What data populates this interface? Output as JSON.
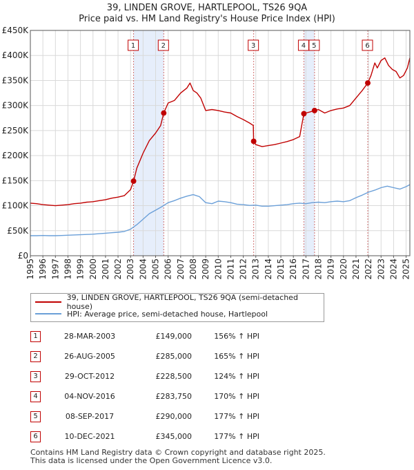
{
  "chart_data": {
    "type": "line",
    "title": "39, LINDEN GROVE, HARTLEPOOL, TS26 9QA",
    "subtitle": "Price paid vs. HM Land Registry's House Price Index (HPI)",
    "xlabel": "",
    "ylabel": "",
    "xlim": [
      1995,
      2025.3
    ],
    "ylim": [
      0,
      450000
    ],
    "ytick_values": [
      0,
      50000,
      100000,
      150000,
      200000,
      250000,
      300000,
      350000,
      400000,
      450000
    ],
    "ytick_labels": [
      "£0",
      "£50K",
      "£100K",
      "£150K",
      "£200K",
      "£250K",
      "£300K",
      "£350K",
      "£400K",
      "£450K"
    ],
    "xtick_values": [
      1995,
      1996,
      1997,
      1998,
      1999,
      2000,
      2001,
      2002,
      2003,
      2004,
      2005,
      2006,
      2007,
      2008,
      2009,
      2010,
      2011,
      2012,
      2013,
      2014,
      2015,
      2016,
      2017,
      2018,
      2019,
      2020,
      2021,
      2022,
      2023,
      2024,
      2025
    ],
    "xtick_labels": [
      "1995",
      "1996",
      "1997",
      "1998",
      "1999",
      "2000",
      "2001",
      "2002",
      "2003",
      "2004",
      "2005",
      "2006",
      "2007",
      "2008",
      "2009",
      "2010",
      "2011",
      "2012",
      "2013",
      "2014",
      "2015",
      "2016",
      "2017",
      "2018",
      "2019",
      "2020",
      "2021",
      "2022",
      "2023",
      "2024",
      "2025"
    ],
    "grid": true,
    "series": [
      {
        "name": "39, LINDEN GROVE, HARTLEPOOL, TS26 9QA (semi-detached house)",
        "color": "#c00000",
        "x": [
          1995.0,
          1995.5,
          1996.0,
          1996.5,
          1997.0,
          1997.5,
          1998.0,
          1998.5,
          1999.0,
          1999.5,
          2000.0,
          2000.5,
          2001.0,
          2001.5,
          2002.0,
          2002.5,
          2003.0,
          2003.24,
          2003.5,
          2004.0,
          2004.5,
          2005.0,
          2005.4,
          2005.65,
          2006.0,
          2006.5,
          2007.0,
          2007.5,
          2007.75,
          2008.0,
          2008.3,
          2008.6,
          2009.0,
          2009.5,
          2010.0,
          2010.5,
          2011.0,
          2011.5,
          2012.0,
          2012.5,
          2012.8,
          2012.83,
          2013.0,
          2013.5,
          2014.0,
          2014.5,
          2015.0,
          2015.5,
          2016.0,
          2016.5,
          2016.84,
          2017.0,
          2017.3,
          2017.69,
          2018.0,
          2018.5,
          2019.0,
          2019.5,
          2020.0,
          2020.5,
          2021.0,
          2021.5,
          2021.94,
          2022.2,
          2022.5,
          2022.7,
          2023.0,
          2023.3,
          2023.6,
          2023.9,
          2024.2,
          2024.5,
          2024.8,
          2025.1,
          2025.3
        ],
        "values": [
          105000,
          104000,
          102000,
          101000,
          100000,
          101000,
          102000,
          104000,
          105000,
          107000,
          108000,
          110000,
          112000,
          115000,
          117000,
          120000,
          132000,
          149000,
          175000,
          205000,
          230000,
          245000,
          260000,
          285000,
          305000,
          310000,
          325000,
          335000,
          345000,
          330000,
          325000,
          315000,
          290000,
          292000,
          290000,
          287000,
          285000,
          278000,
          272000,
          265000,
          260000,
          228500,
          222000,
          218000,
          220000,
          222000,
          225000,
          228000,
          232000,
          238000,
          283750,
          285000,
          287000,
          290000,
          292000,
          285000,
          290000,
          293000,
          295000,
          300000,
          315000,
          330000,
          345000,
          360000,
          385000,
          375000,
          390000,
          395000,
          380000,
          372000,
          368000,
          355000,
          360000,
          375000,
          395000
        ]
      },
      {
        "name": "HPI: Average price, semi-detached house, Hartlepool",
        "color": "#6a9fd8",
        "x": [
          1995.0,
          1995.5,
          1996.0,
          1996.5,
          1997.0,
          1997.5,
          1998.0,
          1998.5,
          1999.0,
          1999.5,
          2000.0,
          2000.5,
          2001.0,
          2001.5,
          2002.0,
          2002.5,
          2003.0,
          2003.5,
          2004.0,
          2004.5,
          2005.0,
          2005.5,
          2006.0,
          2006.5,
          2007.0,
          2007.5,
          2008.0,
          2008.5,
          2009.0,
          2009.5,
          2010.0,
          2010.5,
          2011.0,
          2011.5,
          2012.0,
          2012.5,
          2013.0,
          2013.5,
          2014.0,
          2014.5,
          2015.0,
          2015.5,
          2016.0,
          2016.5,
          2017.0,
          2017.5,
          2018.0,
          2018.5,
          2019.0,
          2019.5,
          2020.0,
          2020.5,
          2021.0,
          2021.5,
          2022.0,
          2022.5,
          2023.0,
          2023.5,
          2024.0,
          2024.5,
          2025.0,
          2025.3
        ],
        "values": [
          40000,
          40000,
          40500,
          40000,
          40000,
          40500,
          41000,
          41500,
          42000,
          42500,
          43000,
          44000,
          45000,
          46000,
          47000,
          48500,
          53000,
          62000,
          73000,
          84000,
          91000,
          98000,
          106000,
          110000,
          115000,
          119000,
          122000,
          118000,
          106000,
          104000,
          109000,
          108000,
          106000,
          103000,
          102000,
          100500,
          101000,
          99000,
          99000,
          100000,
          101000,
          102000,
          104000,
          105000,
          104000,
          106000,
          107000,
          106000,
          108000,
          109000,
          108000,
          110000,
          116000,
          121000,
          127000,
          131000,
          136000,
          139000,
          136000,
          133000,
          138000,
          142000
        ]
      }
    ],
    "sales": [
      {
        "label": "1",
        "x": 2003.24,
        "value": 149000
      },
      {
        "label": "2",
        "x": 2005.65,
        "value": 285000
      },
      {
        "label": "3",
        "x": 2012.83,
        "value": 228500
      },
      {
        "label": "4",
        "x": 2016.84,
        "value": 283750
      },
      {
        "label": "5",
        "x": 2017.69,
        "value": 290000
      },
      {
        "label": "6",
        "x": 2021.94,
        "value": 345000
      }
    ],
    "shaded_spans": [
      [
        2003.24,
        2005.65
      ],
      [
        2016.84,
        2017.69
      ]
    ]
  },
  "legend": {
    "property_label": "39, LINDEN GROVE, HARTLEPOOL, TS26 9QA (semi-detached house)",
    "hpi_label": "HPI: Average price, semi-detached house, Hartlepool"
  },
  "transactions": [
    {
      "num": "1",
      "date": "28-MAR-2003",
      "price": "£149,000",
      "hpi": "156% ↑ HPI"
    },
    {
      "num": "2",
      "date": "26-AUG-2005",
      "price": "£285,000",
      "hpi": "165% ↑ HPI"
    },
    {
      "num": "3",
      "date": "29-OCT-2012",
      "price": "£228,500",
      "hpi": "124% ↑ HPI"
    },
    {
      "num": "4",
      "date": "04-NOV-2016",
      "price": "£283,750",
      "hpi": "170% ↑ HPI"
    },
    {
      "num": "5",
      "date": "08-SEP-2017",
      "price": "£290,000",
      "hpi": "177% ↑ HPI"
    },
    {
      "num": "6",
      "date": "10-DEC-2021",
      "price": "£345,000",
      "hpi": "177% ↑ HPI"
    }
  ],
  "footer": {
    "line1": "Contains HM Land Registry data © Crown copyright and database right 2025.",
    "line2": "This data is licensed under the Open Government Licence v3.0."
  }
}
